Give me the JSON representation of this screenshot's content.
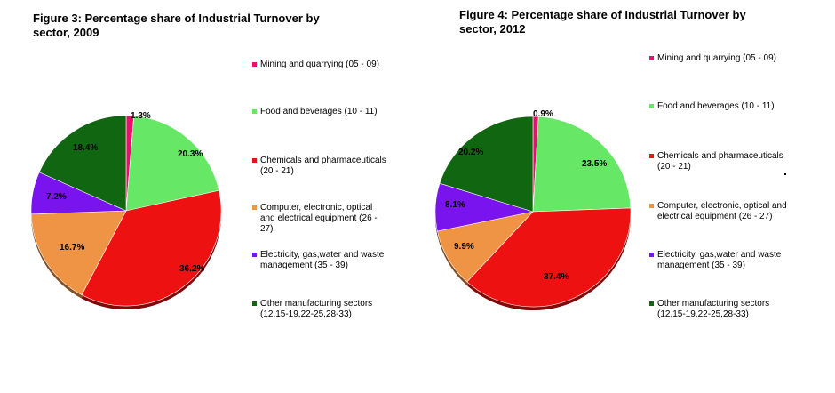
{
  "chart_data": [
    {
      "type": "pie",
      "title": "Figure 3: Percentage share of Industrial Turnover by\nsector, 2009",
      "unit": "%",
      "slices": [
        {
          "label": "Mining and quarrying (05 - 09)",
          "value": 1.3,
          "display": "1.3%",
          "color": "#e8106a"
        },
        {
          "label": "Food and beverages (10 - 11)",
          "value": 20.3,
          "display": "20.3%",
          "color": "#66e866"
        },
        {
          "label": "Chemicals and pharmaceuticals\n(20 - 21)",
          "value": 36.2,
          "display": "36.2%",
          "color": "#ee1111"
        },
        {
          "label": "Computer, electronic, optical\nand electrical equipment (26 -\n27)",
          "value": 16.7,
          "display": "16.7%",
          "color": "#ee9444"
        },
        {
          "label": "Electricity, gas,water and waste\nmanagement (35 - 39)",
          "value": 7.2,
          "display": "7.2%",
          "color": "#7a14ee"
        },
        {
          "label": "Other manufacturing sectors\n(12,15-19,22-25,28-33)",
          "value": 18.4,
          "display": "18.4%",
          "color": "#116611"
        }
      ],
      "legend_position": "right"
    },
    {
      "type": "pie",
      "title": "Figure 4: Percentage share of Industrial Turnover by\nsector, 2012",
      "unit": "%",
      "slices": [
        {
          "label": "Mining and quarrying (05 - 09)",
          "value": 0.9,
          "display": "0.9%",
          "color": "#e8106a"
        },
        {
          "label": "Food and beverages (10 - 11)",
          "value": 23.5,
          "display": "23.5%",
          "color": "#66e866"
        },
        {
          "label": "Chemicals and pharmaceuticals\n(20 - 21)",
          "value": 37.4,
          "display": "37.4%",
          "color": "#ee1111"
        },
        {
          "label": "Computer, electronic, optical and\nelectrical equipment (26 - 27)",
          "value": 9.9,
          "display": "9.9%",
          "color": "#ee9444"
        },
        {
          "label": "Electricity, gas,water and waste\nmanagement (35 - 39)",
          "value": 8.1,
          "display": "8.1%",
          "color": "#7a14ee"
        },
        {
          "label": "Other manufacturing sectors\n(12,15-19,22-25,28-33)",
          "value": 20.2,
          "display": "20.2%",
          "color": "#116611"
        }
      ],
      "legend_position": "right"
    }
  ]
}
